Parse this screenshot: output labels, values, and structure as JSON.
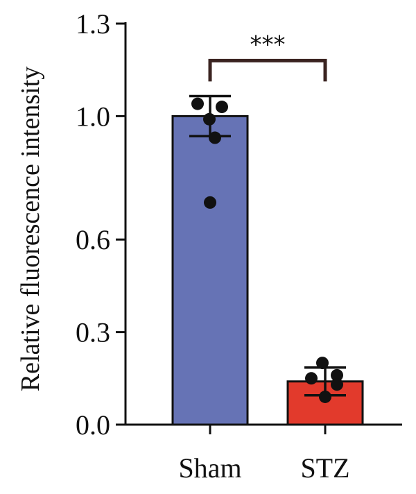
{
  "chart_data": {
    "type": "bar",
    "ylabel": "Relative fluorescence intensity",
    "xlabel": "",
    "ylim": [
      0,
      1.3
    ],
    "yticks": [
      0.0,
      0.3,
      0.6,
      1.0,
      1.3
    ],
    "ytick_labels": [
      "0.0",
      "0.3",
      "0.6",
      "1.0",
      "1.3"
    ],
    "categories": [
      "Sham",
      "STZ"
    ],
    "values": [
      1.0,
      0.14
    ],
    "error": [
      0.065,
      0.045
    ],
    "colors": [
      "#6673b5",
      "#e23a2c"
    ],
    "points": [
      [
        1.04,
        1.03,
        0.99,
        0.93,
        0.72
      ],
      [
        0.2,
        0.16,
        0.15,
        0.13,
        0.09
      ]
    ],
    "significance": {
      "label": "***",
      "between": [
        "Sham",
        "STZ"
      ],
      "level": 1.18
    },
    "grid": false
  }
}
